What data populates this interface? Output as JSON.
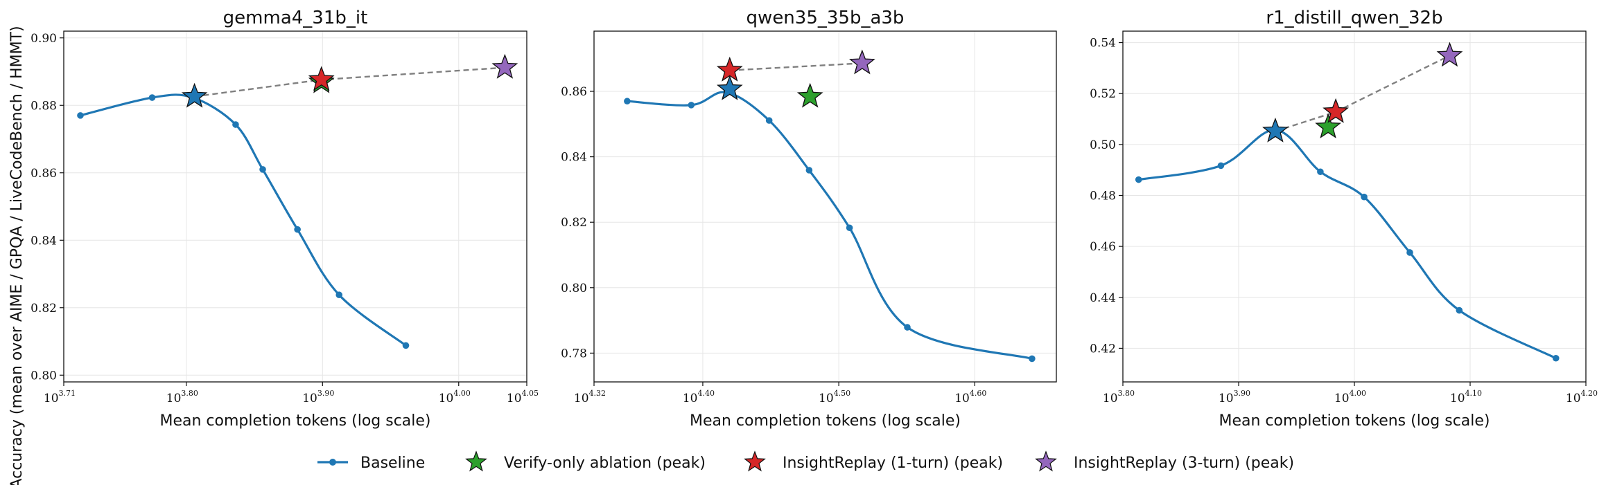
{
  "figure": {
    "ylabel": "Accuracy (mean over AIME / GPQA / LiveCodeBench / HMMT)",
    "xlabel": "Mean completion tokens (log scale)"
  },
  "legend": {
    "placement": "bottom-center",
    "entries": [
      {
        "key": "baseline",
        "label": "Baseline",
        "marker": "line-dot",
        "color": "#1f77b4"
      },
      {
        "key": "verify",
        "label": "Verify-only ablation (peak)",
        "marker": "star",
        "color": "#2ca02c"
      },
      {
        "key": "ir1",
        "label": "InsightReplay (1-turn) (peak)",
        "marker": "star",
        "color": "#d62728"
      },
      {
        "key": "ir3",
        "label": "InsightReplay (3-turn) (peak)",
        "marker": "star",
        "color": "#9467bd"
      }
    ]
  },
  "colors": {
    "baseline": "#1f77b4",
    "verify": "#2ca02c",
    "ir1": "#d62728",
    "ir3": "#9467bd",
    "connector": "#808080",
    "grid": "#e6e6e6"
  },
  "chart_data": [
    {
      "type": "line",
      "title": "gemma4_31b_it",
      "x_scale": "log10",
      "grid": true,
      "xlim_exp": [
        3.71,
        4.05
      ],
      "ylim": [
        0.798,
        0.902
      ],
      "xticks": [
        {
          "base": "10",
          "exp": "3.71",
          "value": 3.71
        },
        {
          "base": "10",
          "exp": "3.80",
          "value": 3.8
        },
        {
          "base": "10",
          "exp": "3.90",
          "value": 3.9
        },
        {
          "base": "10",
          "exp": "4.00",
          "value": 4.0
        },
        {
          "base": "10",
          "exp": "4.05",
          "value": 4.05
        }
      ],
      "yticks": [
        {
          "label": "0.80",
          "value": 0.8
        },
        {
          "label": "0.82",
          "value": 0.82
        },
        {
          "label": "0.84",
          "value": 0.84
        },
        {
          "label": "0.86",
          "value": 0.86
        },
        {
          "label": "0.88",
          "value": 0.88
        },
        {
          "label": "0.90",
          "value": 0.9
        }
      ],
      "baseline": [
        {
          "x_exp": 3.7222,
          "y": 0.877
        },
        {
          "x_exp": 3.7749,
          "y": 0.8823
        },
        {
          "x_exp": 3.8047,
          "y": 0.8823
        },
        {
          "x_exp": 3.8362,
          "y": 0.8743
        },
        {
          "x_exp": 3.8561,
          "y": 0.861
        },
        {
          "x_exp": 3.8816,
          "y": 0.8432
        },
        {
          "x_exp": 3.9122,
          "y": 0.8238
        },
        {
          "x_exp": 3.9612,
          "y": 0.8088
        }
      ],
      "peaks": {
        "baseline": {
          "x_exp": 3.806,
          "y": 0.8826
        },
        "verify": {
          "x_exp": 3.8992,
          "y": 0.8869
        },
        "ir1": {
          "x_exp": 3.8992,
          "y": 0.8876
        },
        "ir3": {
          "x_exp": 4.0339,
          "y": 0.8912
        }
      },
      "connector": [
        "baseline",
        "ir1",
        "ir3"
      ]
    },
    {
      "type": "line",
      "title": "qwen35_35b_a3b",
      "x_scale": "log10",
      "grid": true,
      "xlim_exp": [
        4.32,
        4.66
      ],
      "ylim": [
        0.7712,
        0.8784
      ],
      "xticks": [
        {
          "base": "10",
          "exp": "4.32",
          "value": 4.32
        },
        {
          "base": "10",
          "exp": "4.40",
          "value": 4.4
        },
        {
          "base": "10",
          "exp": "4.50",
          "value": 4.5
        },
        {
          "base": "10",
          "exp": "4.60",
          "value": 4.6
        }
      ],
      "yticks": [
        {
          "label": "0.78",
          "value": 0.78
        },
        {
          "label": "0.80",
          "value": 0.8
        },
        {
          "label": "0.82",
          "value": 0.82
        },
        {
          "label": "0.84",
          "value": 0.84
        },
        {
          "label": "0.86",
          "value": 0.86
        }
      ],
      "baseline": [
        {
          "x_exp": 4.3444,
          "y": 0.857
        },
        {
          "x_exp": 4.3915,
          "y": 0.8558
        },
        {
          "x_exp": 4.4175,
          "y": 0.8597
        },
        {
          "x_exp": 4.4488,
          "y": 0.8511
        },
        {
          "x_exp": 4.4782,
          "y": 0.8359
        },
        {
          "x_exp": 4.5079,
          "y": 0.8183
        },
        {
          "x_exp": 4.5504,
          "y": 0.7879
        },
        {
          "x_exp": 4.6421,
          "y": 0.7783
        }
      ],
      "peaks": {
        "baseline": {
          "x_exp": 4.4198,
          "y": 0.8607
        },
        "verify": {
          "x_exp": 4.4789,
          "y": 0.8584
        },
        "ir1": {
          "x_exp": 4.4198,
          "y": 0.8664
        },
        "ir3": {
          "x_exp": 4.5172,
          "y": 0.8686
        }
      },
      "connector": [
        "ir1",
        "ir3"
      ]
    },
    {
      "type": "line",
      "title": "r1_distill_qwen_32b",
      "x_scale": "log10",
      "grid": true,
      "xlim_exp": [
        3.8,
        4.2
      ],
      "ylim": [
        0.4068,
        0.5445
      ],
      "xticks": [
        {
          "base": "10",
          "exp": "3.80",
          "value": 3.8
        },
        {
          "base": "10",
          "exp": "3.90",
          "value": 3.9
        },
        {
          "base": "10",
          "exp": "4.00",
          "value": 4.0
        },
        {
          "base": "10",
          "exp": "4.10",
          "value": 4.1
        },
        {
          "base": "10",
          "exp": "4.20",
          "value": 4.2
        }
      ],
      "yticks": [
        {
          "label": "0.42",
          "value": 0.42
        },
        {
          "label": "0.44",
          "value": 0.44
        },
        {
          "label": "0.46",
          "value": 0.46
        },
        {
          "label": "0.48",
          "value": 0.48
        },
        {
          "label": "0.50",
          "value": 0.5
        },
        {
          "label": "0.52",
          "value": 0.52
        },
        {
          "label": "0.54",
          "value": 0.54
        }
      ],
      "baseline": [
        {
          "x_exp": 3.8136,
          "y": 0.4862
        },
        {
          "x_exp": 3.8847,
          "y": 0.4917
        },
        {
          "x_exp": 3.9317,
          "y": 0.5057
        },
        {
          "x_exp": 3.9706,
          "y": 0.4893
        },
        {
          "x_exp": 4.0084,
          "y": 0.4794
        },
        {
          "x_exp": 4.0479,
          "y": 0.4576
        },
        {
          "x_exp": 4.0906,
          "y": 0.4349
        },
        {
          "x_exp": 4.1741,
          "y": 0.4161
        }
      ],
      "peaks": {
        "baseline": {
          "x_exp": 3.9317,
          "y": 0.5052
        },
        "verify": {
          "x_exp": 3.9773,
          "y": 0.5068
        },
        "ir1": {
          "x_exp": 3.9839,
          "y": 0.5128
        },
        "ir3": {
          "x_exp": 4.0823,
          "y": 0.5349
        }
      },
      "connector": [
        "baseline",
        "ir1",
        "ir3"
      ]
    }
  ]
}
